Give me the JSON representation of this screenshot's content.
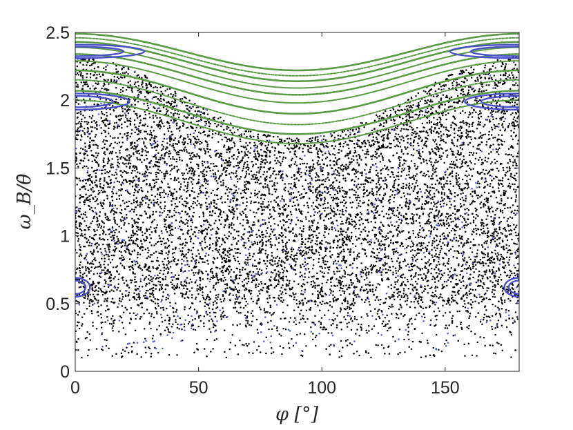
{
  "chart_data": {
    "type": "scatter",
    "title": "",
    "xlabel": "φ [°]",
    "ylabel": "ω_B/θ̇",
    "xlim": [
      0,
      180
    ],
    "ylim": [
      0,
      2.5
    ],
    "x_ticks": [
      0,
      50,
      100,
      150
    ],
    "y_ticks": [
      0,
      0.5,
      1,
      1.5,
      2,
      2.5
    ],
    "x_tick_labels": [
      "0",
      "50",
      "100",
      "150"
    ],
    "y_tick_labels": [
      "0",
      "0.5",
      "1",
      "1.5",
      "2",
      "2.5"
    ],
    "grid": false,
    "legend": "none",
    "colors": {
      "chaotic": "#000000",
      "sticky": "#5b62d3",
      "island": "#4a50c8",
      "invariant_curve": "#5a9a46",
      "axes": "#262626"
    },
    "series": [
      {
        "role": "chaotic sea",
        "color": "#000000",
        "density": "dense for 0.5 < y < 2.0, sparse near y = 0.15 to 0.5, upper edge follows lowest green curve",
        "upper_boundary": [
          [
            0,
            2.35
          ],
          [
            30,
            2.25
          ],
          [
            60,
            2.0
          ],
          [
            90,
            1.68
          ],
          [
            120,
            2.0
          ],
          [
            150,
            2.25
          ],
          [
            180,
            2.35
          ]
        ],
        "lower_boundary_y": 0.1
      },
      {
        "role": "sticky orbits",
        "color": "#5b62d3",
        "density": "sparse points scattered through the chaotic region"
      },
      {
        "role": "invariant curves (KAM tori)",
        "color": "#5a9a46",
        "curves": [
          {
            "y_at_edges": 2.49,
            "y_at_center": 2.22
          },
          {
            "y_at_edges": 2.46,
            "y_at_center": 2.18
          },
          {
            "y_at_edges": 2.43,
            "y_at_center": 2.14
          },
          {
            "y_at_edges": 2.39,
            "y_at_center": 2.09
          },
          {
            "y_at_edges": 2.34,
            "y_at_center": 2.04
          },
          {
            "y_at_edges": 2.29,
            "y_at_center": 1.98
          },
          {
            "y_at_edges": 2.22,
            "y_at_center": 1.9
          },
          {
            "y_at_edges": 2.15,
            "y_at_center": 1.82
          },
          {
            "y_at_edges": 2.07,
            "y_at_center": 1.75
          },
          {
            "y_at_edges": 2.0,
            "y_at_center": 1.68
          }
        ]
      },
      {
        "role": "resonance islands",
        "color": "#4a50c8",
        "islands": [
          {
            "center": [
              0,
              2.36
            ],
            "half_width": 28,
            "half_height": 0.05
          },
          {
            "center": [
              180,
              2.36
            ],
            "half_width": 28,
            "half_height": 0.05
          },
          {
            "center": [
              0,
              1.99
            ],
            "half_width": 22,
            "half_height": 0.06
          },
          {
            "center": [
              180,
              1.99
            ],
            "half_width": 22,
            "half_height": 0.06
          },
          {
            "center": [
              0,
              0.62
            ],
            "half_width": 6,
            "half_height": 0.07
          },
          {
            "center": [
              180,
              0.62
            ],
            "half_width": 6,
            "half_height": 0.07
          }
        ]
      }
    ]
  }
}
